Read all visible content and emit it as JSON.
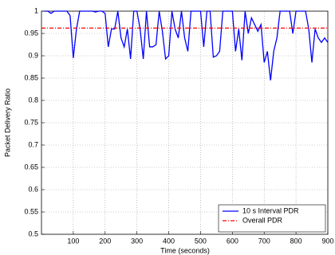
{
  "chart_data": {
    "type": "line",
    "xlabel": "Time (seconds)",
    "ylabel": "Packet Delivery Ratio",
    "x": [
      10,
      20,
      30,
      40,
      50,
      60,
      70,
      80,
      90,
      100,
      110,
      120,
      130,
      140,
      150,
      160,
      170,
      180,
      190,
      200,
      210,
      220,
      230,
      240,
      250,
      260,
      270,
      280,
      290,
      300,
      310,
      320,
      330,
      340,
      350,
      360,
      370,
      380,
      390,
      400,
      410,
      420,
      430,
      440,
      450,
      460,
      470,
      480,
      490,
      500,
      510,
      520,
      530,
      540,
      550,
      560,
      570,
      580,
      590,
      600,
      610,
      620,
      630,
      640,
      650,
      660,
      670,
      680,
      690,
      700,
      710,
      720,
      730,
      740,
      750,
      760,
      770,
      780,
      790,
      800,
      810,
      820,
      830,
      840,
      850,
      860,
      870,
      880,
      890,
      900
    ],
    "series": [
      {
        "name": "10 s Interval PDR",
        "color": "#0000ff",
        "values": [
          1,
          1,
          0.995,
          1,
          1,
          1,
          1,
          1,
          0.99,
          0.895,
          0.96,
          1,
          1,
          1,
          1,
          1,
          0.998,
          1,
          1,
          0.995,
          0.92,
          0.96,
          0.96,
          1,
          0.94,
          0.92,
          0.96,
          0.893,
          1,
          1,
          0.96,
          0.893,
          1,
          0.92,
          0.92,
          0.925,
          1,
          0.955,
          0.893,
          0.9,
          1,
          0.96,
          0.94,
          1,
          0.94,
          0.91,
          1,
          1,
          1,
          1,
          0.92,
          1,
          1,
          0.897,
          0.9,
          0.91,
          1,
          1,
          1,
          1,
          0.91,
          0.96,
          0.89,
          1,
          0.95,
          0.985,
          0.97,
          0.955,
          0.97,
          0.885,
          0.91,
          0.845,
          0.91,
          0.94,
          1,
          1,
          1,
          1,
          0.95,
          1,
          1,
          1,
          1,
          0.96,
          0.885,
          0.96,
          0.94,
          0.93,
          0.94,
          0.93
        ]
      }
    ],
    "reference_line": {
      "name": "Overall PDR",
      "value": 0.962,
      "color": "#ff0000"
    },
    "xlim": [
      0,
      900
    ],
    "xticks": [
      100,
      200,
      300,
      400,
      500,
      600,
      700,
      800,
      900
    ],
    "ylim": [
      0.5,
      1
    ],
    "yticks": [
      0.5,
      0.55,
      0.6,
      0.65,
      0.7,
      0.75,
      0.8,
      0.85,
      0.9,
      0.95,
      1
    ],
    "grid": true,
    "legend": "lower right"
  }
}
